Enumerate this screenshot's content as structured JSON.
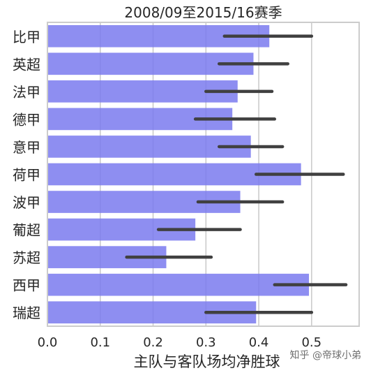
{
  "page": {
    "watermark": "知乎 @帝球小弟"
  },
  "chart_data": {
    "type": "bar",
    "orientation": "horizontal",
    "title": "2008/09至2015/16赛季",
    "xlabel": "主队与客队场均净胜球",
    "ylabel": "",
    "categories": [
      "比甲",
      "英超",
      "法甲",
      "德甲",
      "意甲",
      "荷甲",
      "波甲",
      "葡超",
      "苏超",
      "西甲",
      "瑞超"
    ],
    "values": [
      0.42,
      0.39,
      0.36,
      0.35,
      0.385,
      0.48,
      0.365,
      0.28,
      0.225,
      0.495,
      0.395
    ],
    "error_low": [
      0.335,
      0.325,
      0.3,
      0.28,
      0.325,
      0.395,
      0.285,
      0.21,
      0.15,
      0.43,
      0.3
    ],
    "error_high": [
      0.5,
      0.455,
      0.425,
      0.43,
      0.445,
      0.56,
      0.445,
      0.365,
      0.31,
      0.565,
      0.5
    ],
    "xlim": [
      0.0,
      0.59
    ],
    "xticks": [
      "0.0",
      "0.1",
      "0.2",
      "0.3",
      "0.4",
      "0.5"
    ],
    "grid": true,
    "colors": {
      "bar": "#7a7aee",
      "errorbar": "#404040",
      "grid": "#c8c8c8",
      "text": "#262626",
      "frame": "#cccccc"
    }
  }
}
